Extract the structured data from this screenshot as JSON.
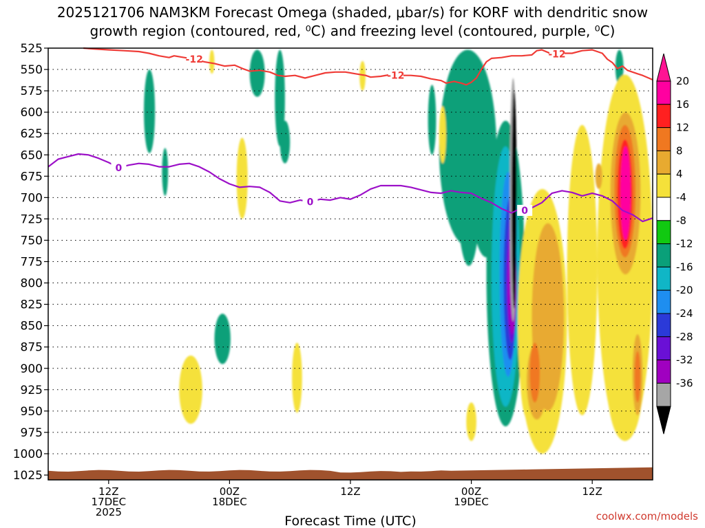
{
  "chart_data": {
    "type": "heatmap",
    "title_line1": "2025121706 NAM3KM Forecast Omega (shaded, μbar/s) for KORF with dendritic snow",
    "title_line2": "growth region (contoured, red, ⁰C) and freezing level (contoured, purple, ⁰C)",
    "xlabel": "Forecast Time (UTC)",
    "x_range_hours": [
      0,
      60
    ],
    "x_ticks": [
      {
        "hour": 6,
        "lines": [
          "12Z",
          "17DEC",
          "2025"
        ]
      },
      {
        "hour": 18,
        "lines": [
          "00Z",
          "18DEC"
        ]
      },
      {
        "hour": 30,
        "lines": [
          "12Z"
        ]
      },
      {
        "hour": 42,
        "lines": [
          "00Z",
          "19DEC"
        ]
      },
      {
        "hour": 54,
        "lines": [
          "12Z"
        ]
      }
    ],
    "y_ticks_hpa": [
      525,
      550,
      575,
      600,
      625,
      650,
      675,
      700,
      725,
      750,
      775,
      800,
      825,
      850,
      875,
      900,
      925,
      950,
      975,
      1000,
      1025
    ],
    "y_range_hpa": [
      525,
      1030
    ],
    "colorbar": {
      "labels": [
        "20",
        "16",
        "12",
        "8",
        "4",
        "-4",
        "-8",
        "-12",
        "-16",
        "-20",
        "-24",
        "-28",
        "-32",
        "-36"
      ],
      "bins": [
        {
          "color": "#ff00a0"
        },
        {
          "color": "#ff2020"
        },
        {
          "color": "#f07820"
        },
        {
          "color": "#e8aa30"
        },
        {
          "color": "#f5e13a"
        },
        {
          "color": "#ffffff"
        },
        {
          "color": "#11c911"
        },
        {
          "color": "#0aa079"
        },
        {
          "color": "#10b6c6"
        },
        {
          "color": "#1e8ef0"
        },
        {
          "color": "#2b3ad8"
        },
        {
          "color": "#6a10d6"
        },
        {
          "color": "#a000c0"
        },
        {
          "color": "#a6a6a6"
        }
      ],
      "top_color": "#ff1493",
      "bottom_color": "#000000"
    },
    "dgz_contour": {
      "label": "-12",
      "color": "#ef3b36",
      "points": [
        [
          3.5,
          525
        ],
        [
          4.5,
          526
        ],
        [
          6,
          527
        ],
        [
          7.5,
          528
        ],
        [
          9,
          529
        ],
        [
          10,
          531
        ],
        [
          11,
          534
        ],
        [
          12,
          536
        ],
        [
          12.5,
          534
        ],
        [
          13.5,
          536
        ],
        [
          14.5,
          538
        ],
        [
          15.5,
          541
        ],
        [
          16.5,
          543
        ],
        [
          17.5,
          546
        ],
        [
          18.5,
          545
        ],
        [
          19.3,
          549
        ],
        [
          20,
          552
        ],
        [
          21,
          551
        ],
        [
          22,
          553
        ],
        [
          22.8,
          557
        ],
        [
          23.5,
          558
        ],
        [
          24.5,
          557
        ],
        [
          25.5,
          560
        ],
        [
          26.5,
          557
        ],
        [
          27.5,
          554
        ],
        [
          28.5,
          553
        ],
        [
          29.5,
          553
        ],
        [
          30.5,
          555
        ],
        [
          31.5,
          557
        ],
        [
          32,
          559
        ],
        [
          33,
          558
        ],
        [
          34,
          556
        ],
        [
          35,
          557
        ],
        [
          36,
          557
        ],
        [
          37,
          558
        ],
        [
          38,
          561
        ],
        [
          39,
          563
        ],
        [
          39.5,
          566
        ],
        [
          40.3,
          564
        ],
        [
          41,
          566
        ],
        [
          41.5,
          568
        ],
        [
          42,
          565
        ],
        [
          42.5,
          560
        ],
        [
          43,
          550
        ],
        [
          43.5,
          541
        ],
        [
          44,
          537
        ],
        [
          45,
          536
        ],
        [
          46,
          534
        ],
        [
          47,
          534
        ],
        [
          48,
          533
        ],
        [
          48.5,
          528
        ],
        [
          49,
          527
        ],
        [
          50,
          532
        ],
        [
          51,
          531
        ],
        [
          52,
          531
        ],
        [
          53,
          528
        ],
        [
          54,
          527
        ],
        [
          55,
          531
        ],
        [
          55.5,
          538
        ],
        [
          56,
          542
        ],
        [
          56.5,
          549
        ],
        [
          57,
          546
        ],
        [
          57.5,
          551
        ],
        [
          58,
          553
        ],
        [
          58.5,
          555
        ],
        [
          59,
          557
        ],
        [
          60,
          562
        ]
      ],
      "label_points": [
        [
          14.5,
          538
        ],
        [
          34.5,
          557
        ],
        [
          50.5,
          532
        ]
      ]
    },
    "freezing_contour": {
      "label": "0",
      "color": "#9c10c8",
      "points": [
        [
          0,
          664
        ],
        [
          1,
          655
        ],
        [
          2,
          652
        ],
        [
          3,
          649
        ],
        [
          4,
          650
        ],
        [
          5,
          654
        ],
        [
          6,
          659
        ],
        [
          7,
          665
        ],
        [
          8,
          662
        ],
        [
          9,
          660
        ],
        [
          10,
          661
        ],
        [
          11,
          664
        ],
        [
          12,
          664
        ],
        [
          13,
          661
        ],
        [
          14,
          660
        ],
        [
          15,
          664
        ],
        [
          16,
          670
        ],
        [
          17,
          678
        ],
        [
          18,
          684
        ],
        [
          19,
          688
        ],
        [
          20,
          687
        ],
        [
          21,
          688
        ],
        [
          22,
          694
        ],
        [
          23,
          704
        ],
        [
          24,
          706
        ],
        [
          25,
          703
        ],
        [
          26,
          705
        ],
        [
          27,
          702
        ],
        [
          28,
          703
        ],
        [
          29,
          700
        ],
        [
          30,
          702
        ],
        [
          31,
          697
        ],
        [
          32,
          690
        ],
        [
          33,
          686
        ],
        [
          34,
          686
        ],
        [
          35,
          686
        ],
        [
          36,
          688
        ],
        [
          37,
          691
        ],
        [
          38,
          694
        ],
        [
          39,
          695
        ],
        [
          40,
          692
        ],
        [
          41,
          694
        ],
        [
          42,
          695
        ],
        [
          43,
          701
        ],
        [
          44,
          706
        ],
        [
          45,
          713
        ],
        [
          46,
          718
        ],
        [
          47,
          712
        ],
        [
          48,
          712
        ],
        [
          49,
          706
        ],
        [
          50,
          695
        ],
        [
          51,
          692
        ],
        [
          52,
          694
        ],
        [
          53,
          698
        ],
        [
          54,
          695
        ],
        [
          55,
          698
        ],
        [
          56,
          704
        ],
        [
          57,
          715
        ],
        [
          58,
          720
        ],
        [
          59,
          728
        ],
        [
          60,
          724
        ]
      ],
      "label_points": [
        [
          7,
          665
        ],
        [
          26,
          705
        ],
        [
          47.3,
          715
        ]
      ]
    },
    "omega_regions": [
      {
        "level": "-8",
        "x": [
          38.8,
          44.5
        ],
        "p": [
          527,
          757
        ]
      },
      {
        "level": "-8",
        "x": [
          40.5,
          43.0
        ],
        "p": [
          560,
          780
        ]
      },
      {
        "level": "-8",
        "x": [
          43.5,
          47.3
        ],
        "p": [
          610,
          968
        ]
      },
      {
        "level": "-8",
        "x": [
          42.0,
          45.0
        ],
        "p": [
          620,
          770
        ]
      },
      {
        "level": "-8",
        "x": [
          20.0,
          21.5
        ],
        "p": [
          527,
          582
        ]
      },
      {
        "level": "-8",
        "x": [
          22.5,
          23.5
        ],
        "p": [
          527,
          640
        ]
      },
      {
        "level": "-8",
        "x": [
          23.0,
          24.0
        ],
        "p": [
          610,
          660
        ]
      },
      {
        "level": "-8",
        "x": [
          9.5,
          10.6
        ],
        "p": [
          550,
          648
        ]
      },
      {
        "level": "-8",
        "x": [
          11.3,
          11.9
        ],
        "p": [
          642,
          698
        ]
      },
      {
        "level": "-8",
        "x": [
          37.7,
          38.5
        ],
        "p": [
          568,
          650
        ]
      },
      {
        "level": "-8",
        "x": [
          16.5,
          18.1
        ],
        "p": [
          836,
          895
        ]
      },
      {
        "level": "-8",
        "x": [
          57.2,
          57.6
        ],
        "p": [
          837,
          862
        ]
      },
      {
        "level": "-8",
        "x": [
          56.3,
          57.1
        ],
        "p": [
          527,
          568
        ]
      },
      {
        "level": "-12",
        "x": [
          44.0,
          46.8
        ],
        "p": [
          640,
          945
        ]
      },
      {
        "level": "-16",
        "x": [
          44.8,
          46.5
        ],
        "p": [
          670,
          910
        ]
      },
      {
        "level": "-20",
        "x": [
          45.2,
          46.5
        ],
        "p": [
          700,
          890
        ]
      },
      {
        "level": "-24",
        "x": [
          45.5,
          46.5
        ],
        "p": [
          720,
          870
        ]
      },
      {
        "level": "-28",
        "x": [
          45.6,
          46.5
        ],
        "p": [
          740,
          860
        ]
      },
      {
        "level": "-32",
        "x": [
          45.8,
          46.5
        ],
        "p": [
          560,
          845
        ]
      },
      {
        "level": "-36",
        "x": [
          46.0,
          46.5
        ],
        "p": [
          575,
          830
        ]
      },
      {
        "level": "4",
        "x": [
          46.6,
          51.5
        ],
        "p": [
          690,
          1000
        ]
      },
      {
        "level": "4",
        "x": [
          46.8,
          48.4
        ],
        "p": [
          825,
          960
        ]
      },
      {
        "level": "4",
        "x": [
          51.5,
          54.5
        ],
        "p": [
          615,
          955
        ]
      },
      {
        "level": "4",
        "x": [
          54.5,
          60.0
        ],
        "p": [
          556,
          985
        ]
      },
      {
        "level": "4",
        "x": [
          55.5,
          59.0
        ],
        "p": [
          850,
          985
        ]
      },
      {
        "level": "4",
        "x": [
          18.7,
          19.8
        ],
        "p": [
          630,
          725
        ]
      },
      {
        "level": "4",
        "x": [
          13.0,
          15.3
        ],
        "p": [
          885,
          965
        ]
      },
      {
        "level": "4",
        "x": [
          24.2,
          25.2
        ],
        "p": [
          870,
          952
        ]
      },
      {
        "level": "4",
        "x": [
          30.9,
          31.5
        ],
        "p": [
          540,
          575
        ]
      },
      {
        "level": "4",
        "x": [
          38.8,
          39.5
        ],
        "p": [
          593,
          660
        ]
      },
      {
        "level": "4",
        "x": [
          41.5,
          42.5
        ],
        "p": [
          940,
          985
        ]
      },
      {
        "level": "4",
        "x": [
          16.0,
          16.5
        ],
        "p": [
          527,
          555
        ]
      },
      {
        "level": "8",
        "x": [
          48.0,
          51.2
        ],
        "p": [
          730,
          950
        ]
      },
      {
        "level": "8",
        "x": [
          47.5,
          49.5
        ],
        "p": [
          870,
          960
        ]
      },
      {
        "level": "8",
        "x": [
          55.8,
          58.8
        ],
        "p": [
          600,
          790
        ]
      },
      {
        "level": "8",
        "x": [
          58.0,
          59.0
        ],
        "p": [
          860,
          955
        ]
      },
      {
        "level": "8",
        "x": [
          54.3,
          55.0
        ],
        "p": [
          660,
          690
        ]
      },
      {
        "level": "12",
        "x": [
          56.2,
          58.3
        ],
        "p": [
          615,
          770
        ]
      },
      {
        "level": "12",
        "x": [
          47.8,
          48.8
        ],
        "p": [
          870,
          940
        ]
      },
      {
        "level": "12",
        "x": [
          58.2,
          58.8
        ],
        "p": [
          880,
          940
        ]
      },
      {
        "level": "16",
        "x": [
          56.5,
          58.0
        ],
        "p": [
          632,
          760
        ]
      },
      {
        "level": "20",
        "x": [
          56.8,
          57.8
        ],
        "p": [
          640,
          750
        ]
      }
    ],
    "terrain": {
      "color": "#a0522d",
      "top_hpa": 1020
    }
  },
  "credit": "coolwx.com/models"
}
